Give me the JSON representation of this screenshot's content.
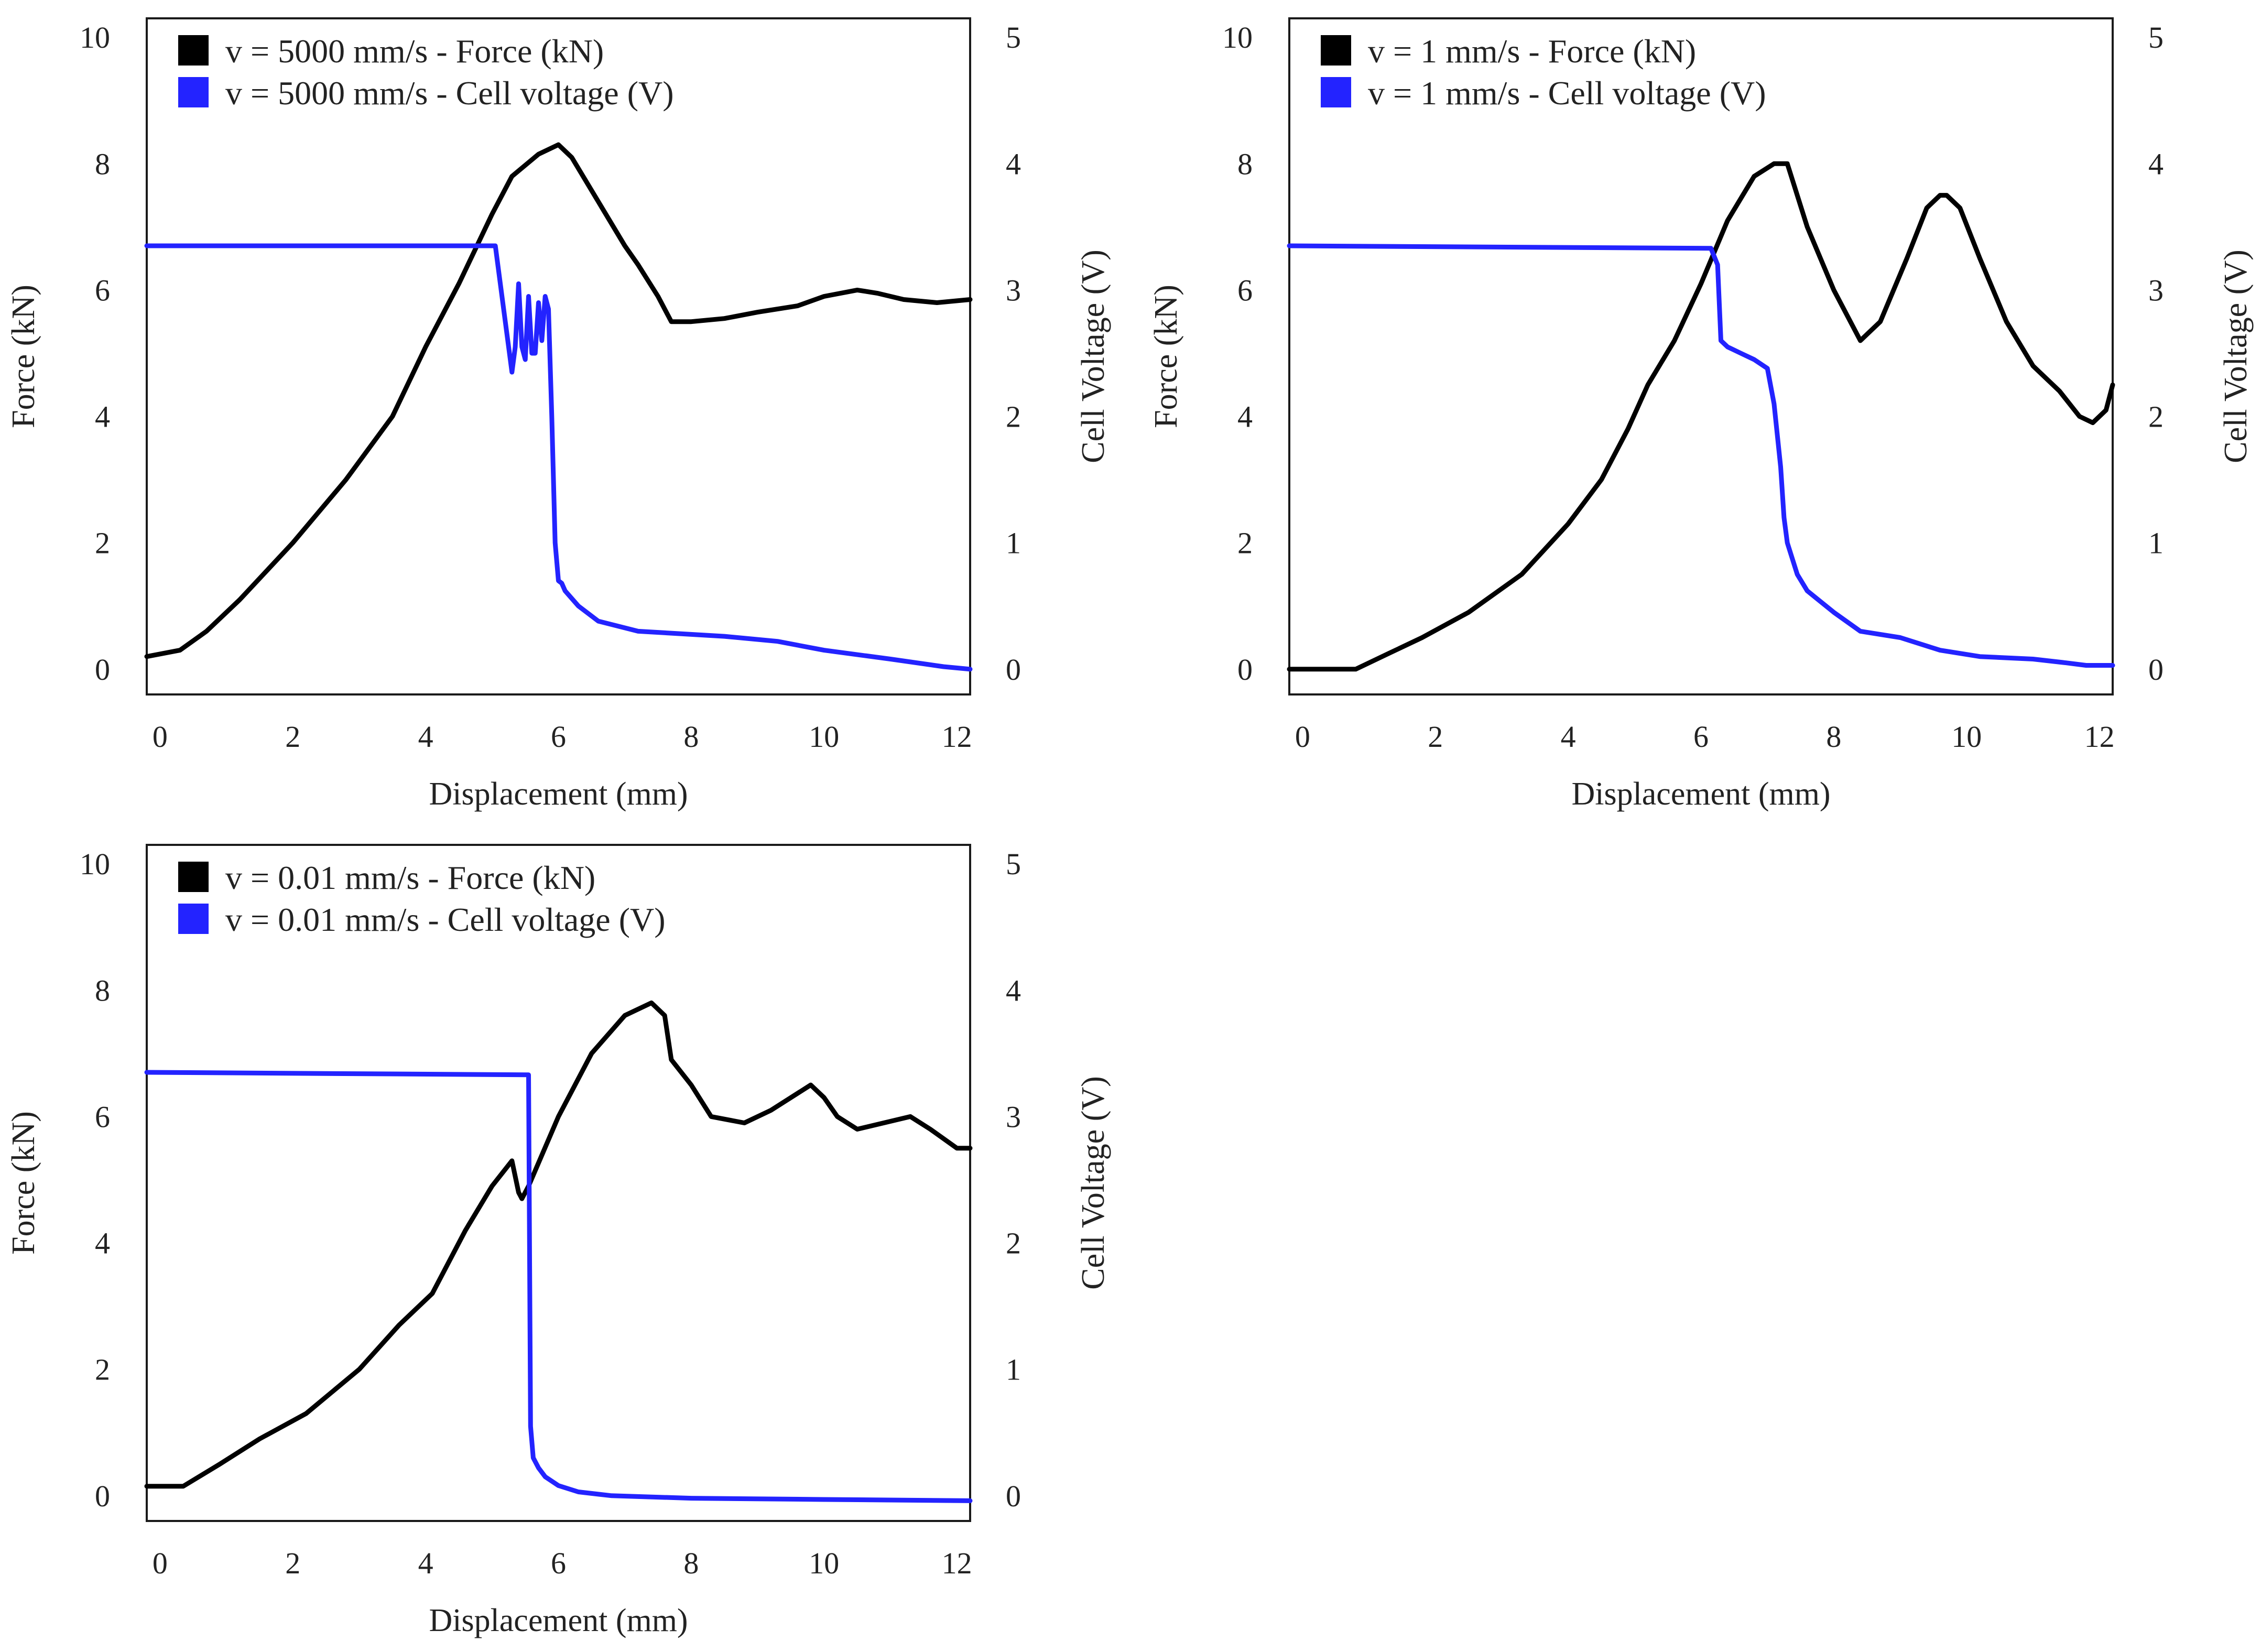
{
  "chart_data": [
    {
      "type": "line",
      "xlabel": "Displacement (mm)",
      "ylabel": "Force (kN)",
      "y2label": "Cell Voltage (V)",
      "xlim": [
        -0.2,
        12.2
      ],
      "ylim": [
        -0.4,
        10.3
      ],
      "y2lim": [
        -0.2,
        5.15
      ],
      "xticks": [
        0,
        2,
        4,
        6,
        8,
        10,
        12
      ],
      "yticks": [
        0,
        2,
        4,
        6,
        8,
        10
      ],
      "y2ticks": [
        0,
        1,
        2,
        3,
        4,
        5
      ],
      "legend_position": "top-left",
      "series": [
        {
          "name": "v = 5000 mm/s - Force (kN)",
          "axis": "left",
          "color": "#000000",
          "x": [
            -0.2,
            0.3,
            0.7,
            1.2,
            2,
            2.8,
            3.5,
            4,
            4.5,
            5,
            5.3,
            5.7,
            6,
            6.2,
            6.6,
            7,
            7.2,
            7.5,
            7.7,
            8,
            8.5,
            9,
            9.6,
            10,
            10.5,
            10.8,
            11.2,
            11.7,
            12.2
          ],
          "values": [
            0.2,
            0.3,
            0.6,
            1.1,
            2.0,
            3.0,
            4.0,
            5.1,
            6.1,
            7.2,
            7.8,
            8.15,
            8.3,
            8.1,
            7.4,
            6.7,
            6.4,
            5.9,
            5.5,
            5.5,
            5.55,
            5.65,
            5.75,
            5.9,
            6.0,
            5.95,
            5.85,
            5.8,
            5.85
          ]
        },
        {
          "name": "v = 5000 mm/s  - Cell voltage (V)",
          "axis": "right",
          "color": "#2323ff",
          "x": [
            -0.2,
            5.05,
            5.2,
            5.3,
            5.35,
            5.4,
            5.45,
            5.5,
            5.55,
            5.6,
            5.65,
            5.7,
            5.75,
            5.8,
            5.85,
            5.9,
            5.95,
            6.0,
            6.05,
            6.1,
            6.3,
            6.6,
            7.2,
            8.5,
            9.3,
            10,
            11,
            11.8,
            12.2
          ],
          "values": [
            3.35,
            3.35,
            2.75,
            2.35,
            2.55,
            3.05,
            2.55,
            2.45,
            2.95,
            2.5,
            2.5,
            2.9,
            2.6,
            2.95,
            2.85,
            2.0,
            1.0,
            0.7,
            0.68,
            0.62,
            0.5,
            0.38,
            0.3,
            0.26,
            0.22,
            0.15,
            0.08,
            0.02,
            0.0
          ]
        }
      ]
    },
    {
      "type": "line",
      "xlabel": "Displacement (mm)",
      "ylabel": "Force (kN)",
      "y2label": "Cell Voltage (V)",
      "xlim": [
        -0.2,
        12.2
      ],
      "ylim": [
        -0.4,
        10.3
      ],
      "y2lim": [
        -0.2,
        5.15
      ],
      "xticks": [
        0,
        2,
        4,
        6,
        8,
        10,
        12
      ],
      "yticks": [
        0,
        2,
        4,
        6,
        8,
        10
      ],
      "y2ticks": [
        0,
        1,
        2,
        3,
        4,
        5
      ],
      "legend_position": "top-left",
      "series": [
        {
          "name": "v = 1 mm/s - Force (kN)",
          "axis": "left",
          "color": "#000000",
          "x": [
            -0.2,
            0.8,
            1.3,
            1.8,
            2.5,
            3.3,
            4,
            4.5,
            4.9,
            5.2,
            5.6,
            6,
            6.4,
            6.8,
            7.1,
            7.3,
            7.6,
            8,
            8.4,
            8.7,
            9.1,
            9.4,
            9.6,
            9.7,
            9.9,
            10.2,
            10.6,
            11,
            11.4,
            11.7,
            11.9,
            12.1,
            12.2
          ],
          "values": [
            0.0,
            0.0,
            0.25,
            0.5,
            0.9,
            1.5,
            2.3,
            3.0,
            3.8,
            4.5,
            5.2,
            6.1,
            7.1,
            7.8,
            8.0,
            8.0,
            7.0,
            6.0,
            5.2,
            5.5,
            6.5,
            7.3,
            7.5,
            7.5,
            7.3,
            6.5,
            5.5,
            4.8,
            4.4,
            4.0,
            3.9,
            4.1,
            4.5
          ]
        },
        {
          "name": "v = 1  mm/s  - Cell voltage (V)",
          "axis": "right",
          "color": "#2323ff",
          "x": [
            -0.2,
            6.15,
            6.25,
            6.3,
            6.4,
            6.6,
            6.8,
            7.0,
            7.1,
            7.2,
            7.25,
            7.3,
            7.45,
            7.6,
            8,
            8.4,
            9,
            9.6,
            10.2,
            11,
            11.5,
            11.8,
            12.2
          ],
          "values": [
            3.35,
            3.33,
            3.2,
            2.6,
            2.55,
            2.5,
            2.45,
            2.38,
            2.1,
            1.6,
            1.2,
            1.0,
            0.75,
            0.62,
            0.45,
            0.3,
            0.25,
            0.15,
            0.1,
            0.08,
            0.05,
            0.03,
            0.03
          ]
        }
      ]
    },
    {
      "type": "line",
      "xlabel": "Displacement (mm)",
      "ylabel": "Force (kN)",
      "y2label": "Cell Voltage (V)",
      "xlim": [
        -0.2,
        12.2
      ],
      "ylim": [
        -0.4,
        10.3
      ],
      "y2lim": [
        -0.2,
        5.15
      ],
      "xticks": [
        0,
        2,
        4,
        6,
        8,
        10,
        12
      ],
      "yticks": [
        0,
        2,
        4,
        6,
        8,
        10
      ],
      "y2ticks": [
        0,
        1,
        2,
        3,
        4,
        5
      ],
      "legend_position": "top-left",
      "series": [
        {
          "name": "v = 0.01 mm/s - Force (kN)",
          "axis": "left",
          "color": "#000000",
          "x": [
            -0.2,
            0.35,
            0.9,
            1.5,
            2.2,
            3,
            3.6,
            4.1,
            4.6,
            5,
            5.3,
            5.4,
            5.45,
            5.55,
            6,
            6.5,
            7,
            7.4,
            7.6,
            7.7,
            8,
            8.3,
            8.8,
            9.2,
            9.8,
            10,
            10.2,
            10.5,
            11.3,
            11.6,
            12,
            12.2
          ],
          "values": [
            0.15,
            0.15,
            0.5,
            0.9,
            1.3,
            2.0,
            2.7,
            3.2,
            4.2,
            4.9,
            5.3,
            4.8,
            4.7,
            4.9,
            6.0,
            7.0,
            7.6,
            7.8,
            7.6,
            6.9,
            6.5,
            6.0,
            5.9,
            6.1,
            6.5,
            6.3,
            6.0,
            5.8,
            6.0,
            5.8,
            5.5,
            5.5
          ]
        },
        {
          "name": "v = 0.01  mm/s  - Cell voltage (V)",
          "axis": "right",
          "color": "#2323ff",
          "x": [
            -0.2,
            5.55,
            5.58,
            5.62,
            5.7,
            5.8,
            6,
            6.3,
            6.8,
            8,
            10,
            12.2
          ],
          "values": [
            3.35,
            3.33,
            0.55,
            0.3,
            0.22,
            0.15,
            0.08,
            0.03,
            0.0,
            -0.02,
            -0.03,
            -0.04
          ]
        }
      ]
    }
  ]
}
